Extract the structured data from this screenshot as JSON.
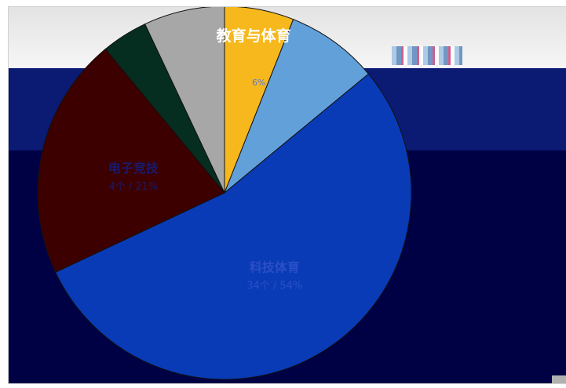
{
  "chart_data": {
    "type": "pie",
    "title": "",
    "slices": [
      {
        "label": "教育与体育",
        "value_text": "",
        "percent": 6,
        "color": "#f6b81c"
      },
      {
        "label": "",
        "value_text": "",
        "percent": 8,
        "color": "#62a0da"
      },
      {
        "label": "科技体育",
        "value_text": "34个 / 54%",
        "percent": 54,
        "color": "#0a3bb6"
      },
      {
        "label": "电子竞技",
        "value_text": "4个 / 21%",
        "percent": 21,
        "color": "#3c0000"
      },
      {
        "label": "",
        "value_text": "",
        "percent": 4,
        "color": "#062e20"
      },
      {
        "label": "",
        "value_text": "",
        "percent": 7,
        "color": "#a7a7a7"
      }
    ],
    "small_labels": [
      "6%"
    ]
  }
}
